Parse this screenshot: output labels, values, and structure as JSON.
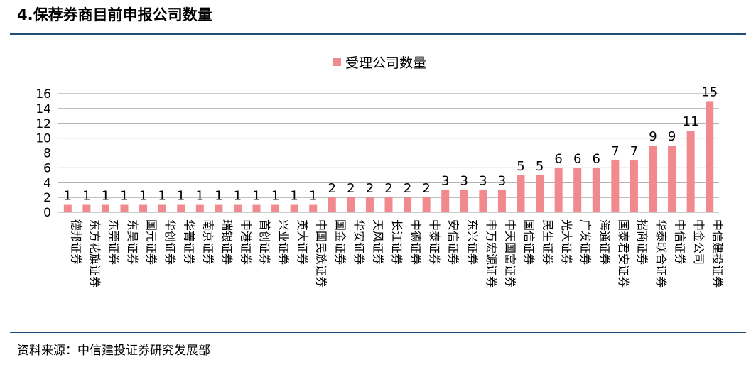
{
  "header": {
    "title": "4.保荐券商目前申报公司数量"
  },
  "footer": {
    "source": "资料来源：中信建投证券研究发展部"
  },
  "colors": {
    "bar": "#f08a8e",
    "grid": "#9a9a9a",
    "rule": "#1f4e79"
  },
  "chart_data": {
    "type": "bar",
    "title": "",
    "xlabel": "",
    "ylabel": "",
    "ylim": [
      0,
      16
    ],
    "yticks": [
      0,
      2,
      4,
      6,
      8,
      10,
      12,
      14,
      16
    ],
    "grid": true,
    "legend_position": "top-center",
    "categories": [
      "德邦证券",
      "东方花旗证券",
      "东莞证券",
      "东吴证券",
      "国元证券",
      "华创证券",
      "华菁证券",
      "南京证券",
      "瑞银证券",
      "申港证券",
      "首创证券",
      "兴业证券",
      "英大证券",
      "中国民族证券",
      "国金证券",
      "华安证券",
      "天风证券",
      "长江证券",
      "中德证券",
      "中泰证券",
      "安信证券",
      "东兴证券",
      "申万宏源证券",
      "中天国富证券",
      "国信证券",
      "民生证券",
      "光大证券",
      "广发证券",
      "海通证券",
      "国泰君安证券",
      "招商证券",
      "华泰联合证券",
      "中信证券",
      "中金公司",
      "中信建投证券"
    ],
    "series": [
      {
        "name": "受理公司数量",
        "values": [
          1,
          1,
          1,
          1,
          1,
          1,
          1,
          1,
          1,
          1,
          1,
          1,
          1,
          1,
          2,
          2,
          2,
          2,
          2,
          2,
          3,
          3,
          3,
          3,
          5,
          5,
          6,
          6,
          6,
          7,
          7,
          9,
          9,
          11,
          15
        ]
      }
    ]
  }
}
